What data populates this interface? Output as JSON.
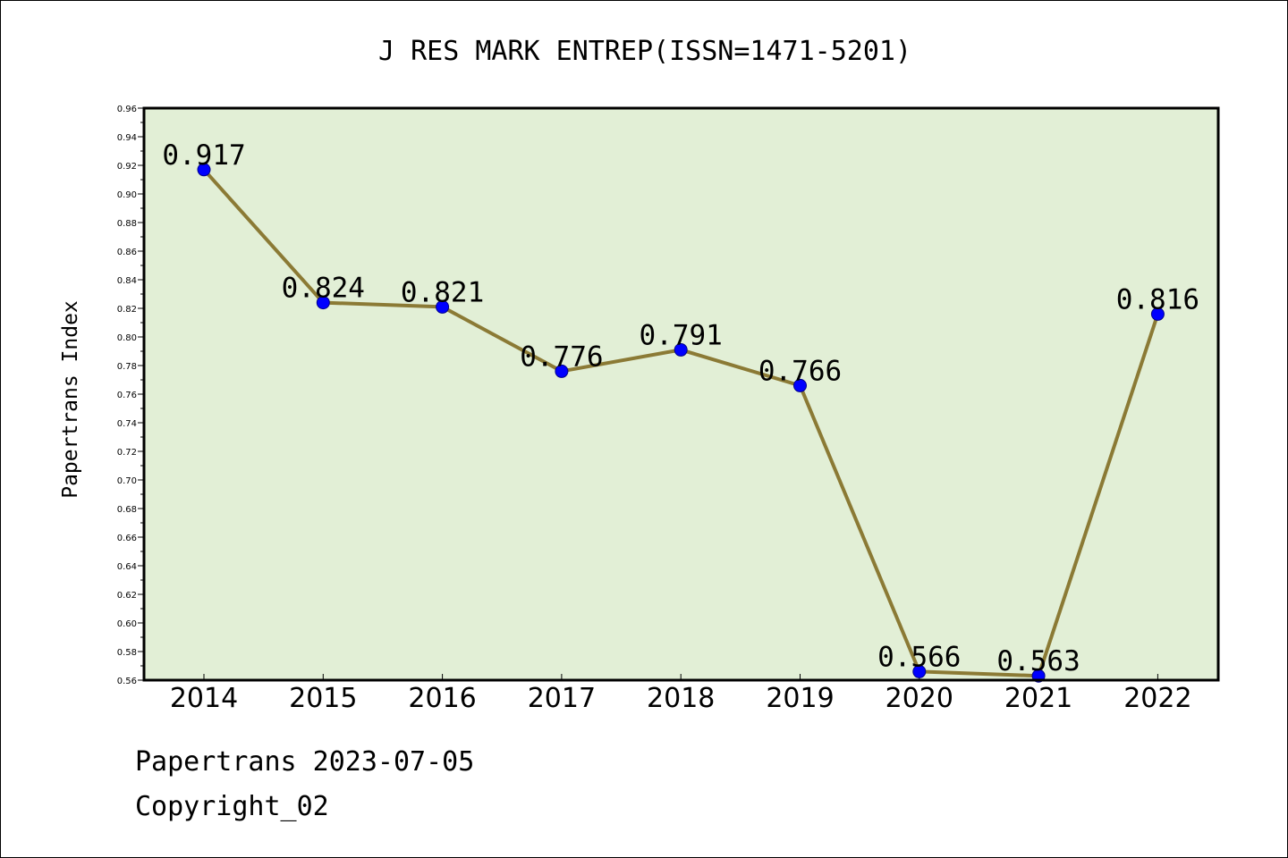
{
  "chart_data": {
    "type": "line",
    "title": "J RES MARK ENTREP(ISSN=1471-5201)",
    "xlabel": "",
    "ylabel": "Papertrans Index",
    "categories": [
      "2014",
      "2015",
      "2016",
      "2017",
      "2018",
      "2019",
      "2020",
      "2021",
      "2022"
    ],
    "series": [
      {
        "values": [
          0.917,
          0.824,
          0.821,
          0.776,
          0.791,
          0.766,
          0.566,
          0.563,
          0.816
        ],
        "data_labels": [
          "0.917",
          "0.824",
          "0.821",
          "0.776",
          "0.791",
          "0.766",
          "0.566",
          "0.563",
          "0.816"
        ]
      }
    ],
    "ylim": [
      0.56,
      0.96
    ],
    "yticks": [
      "0.56",
      "0.58",
      "0.60",
      "0.62",
      "0.64",
      "0.66",
      "0.68",
      "0.70",
      "0.72",
      "0.74",
      "0.76",
      "0.78",
      "0.80",
      "0.82",
      "0.84",
      "0.86",
      "0.88",
      "0.90",
      "0.92",
      "0.94",
      "0.96"
    ],
    "grid": false,
    "legend": "none",
    "colors": {
      "plot_background": "#e2efd6",
      "line": "#8b7a35",
      "marker": "#0000ff",
      "axis": "#000000"
    }
  },
  "footer": {
    "date_text": "Papertrans 2023-07-05",
    "copyright_text": "Copyright_02"
  }
}
